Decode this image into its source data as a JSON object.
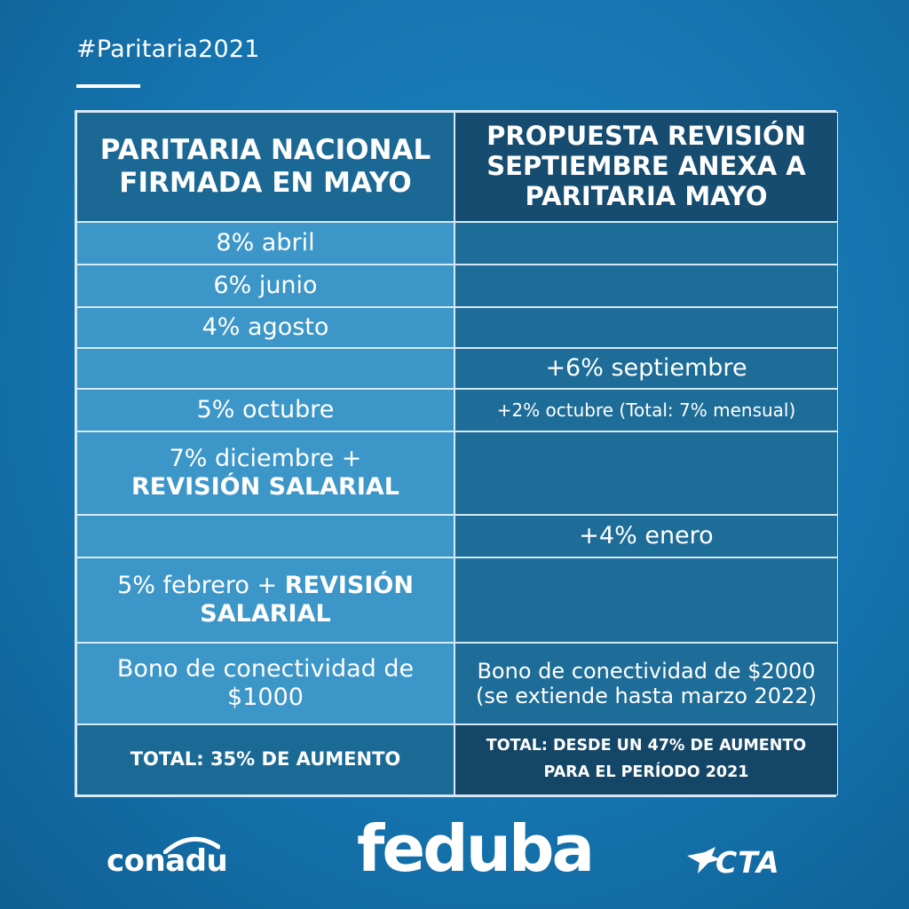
{
  "hashtag": "#Paritaria2021",
  "table": {
    "header": {
      "left": "PARITARIA NACIONAL FIRMADA EN MAYO",
      "right": "PROPUESTA REVISIÓN SEPTIEMBRE ANEXA A PARITARIA MAYO"
    },
    "rows": [
      {
        "left": "8% abril",
        "right": ""
      },
      {
        "left": "6% junio",
        "right": ""
      },
      {
        "left": "4% agosto",
        "right": ""
      },
      {
        "left": "",
        "right": "+6% septiembre"
      },
      {
        "left": "5% octubre",
        "right": "+2% octubre (Total: 7% mensual)"
      },
      {
        "left": "7% diciembre +",
        "left_bold": "REVISIÓN SALARIAL",
        "right": ""
      },
      {
        "left": "",
        "right": "+4% enero"
      },
      {
        "left": "5% febrero +",
        "left_bold": "REVISIÓN SALARIAL",
        "right": ""
      },
      {
        "left": "Bono de conectividad de $1000",
        "right": "Bono de conectividad de $2000 (se extiende hasta marzo 2022)"
      }
    ],
    "total": {
      "left": "TOTAL: 35% DE AUMENTO",
      "right": "TOTAL: DESDE UN 47% DE AUMENTO PARA EL PERÍODO 2021"
    }
  },
  "footer": {
    "logo_left": "conadu",
    "logo_center": "feduba",
    "logo_right": "CTA"
  }
}
